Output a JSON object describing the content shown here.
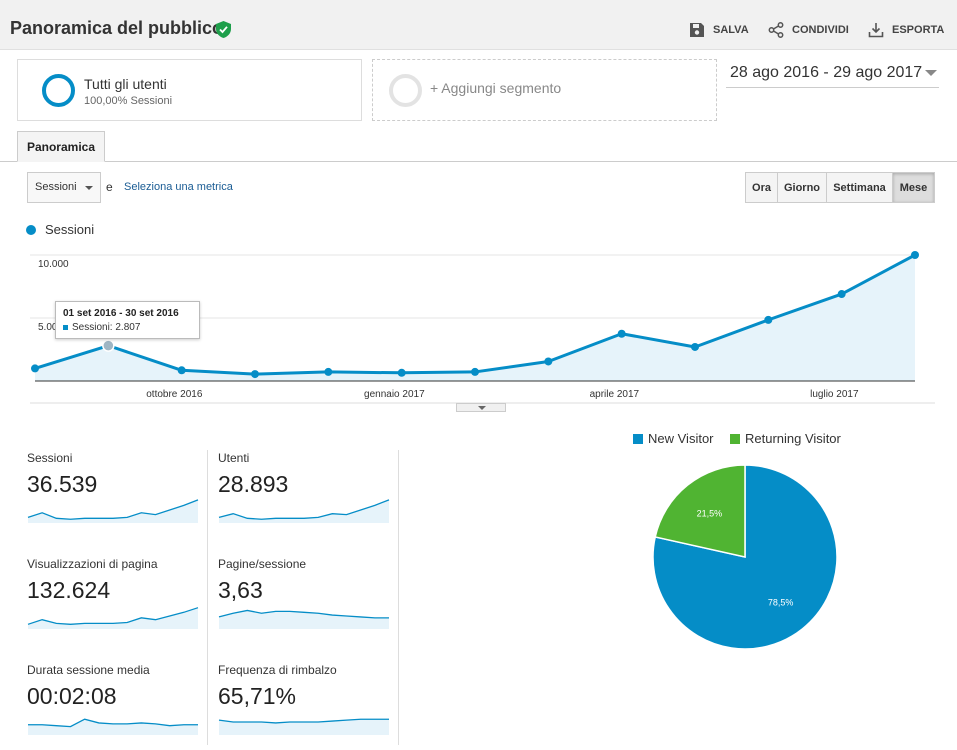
{
  "header": {
    "title": "Panoramica del pubblico",
    "actions": [
      {
        "label": "SALVA",
        "icon": "save-icon"
      },
      {
        "label": "CONDIVIDI",
        "icon": "share-icon"
      },
      {
        "label": "ESPORTA",
        "icon": "export-icon"
      }
    ]
  },
  "segments": {
    "active": {
      "name": "Tutti gli utenti",
      "sub": "100,00% Sessioni"
    },
    "add_label": "+ Aggiungi segmento"
  },
  "date_range": "28 ago 2016 - 29 ago 2017",
  "tabs": [
    "Panoramica"
  ],
  "controls": {
    "metric": "Sessioni",
    "and_text": "e",
    "select_metric": "Seleziona una metrica",
    "periods": [
      "Ora",
      "Giorno",
      "Settimana",
      "Mese"
    ],
    "active_period": "Mese"
  },
  "tooltip": {
    "title": "01 set 2016 - 30 set 2016",
    "line": "Sessioni: 2.807"
  },
  "chart_data": [
    {
      "type": "area",
      "series": [
        {
          "name": "Sessioni",
          "values": [
            1000,
            2807,
            850,
            550,
            720,
            650,
            720,
            1550,
            3750,
            2700,
            4850,
            6900,
            10000
          ]
        }
      ],
      "ylim": [
        0,
        10000
      ],
      "yticks": [
        "10.000",
        "5.000"
      ],
      "xtick_labels": [
        "ottobre 2016",
        "gennaio 2017",
        "aprile 2017",
        "luglio 2017"
      ],
      "xtick_indices": [
        1.9,
        4.9,
        7.9,
        10.9
      ],
      "grid": true,
      "color": "#058dc7",
      "fill_color": "#e6f3fa",
      "highlight_index": 1
    },
    {
      "type": "pie",
      "title": "",
      "slices": [
        {
          "label": "New Visitor",
          "value": 78.5,
          "text": "78,5%",
          "color": "#058dc7"
        },
        {
          "label": "Returning Visitor",
          "value": 21.5,
          "text": "21,5%",
          "color": "#50b432"
        }
      ],
      "legend": "top"
    }
  ],
  "scorecards": [
    {
      "label": "Sessioni",
      "value": "36.539",
      "spark": [
        5,
        10,
        4,
        3,
        4,
        4,
        4,
        5,
        10,
        8,
        13,
        18,
        24
      ]
    },
    {
      "label": "Utenti",
      "value": "28.893",
      "spark": [
        5,
        9,
        4,
        3,
        4,
        4,
        4,
        5,
        9,
        8,
        13,
        18,
        24
      ]
    },
    {
      "label": "Visualizzazioni di pagina",
      "value": "132.624",
      "spark": [
        4,
        9,
        5,
        4,
        5,
        5,
        5,
        6,
        11,
        9,
        13,
        17,
        22
      ]
    },
    {
      "label": "Pagine/sessione",
      "value": "3,63",
      "spark": [
        12,
        16,
        19,
        16,
        18,
        18,
        17,
        16,
        14,
        13,
        12,
        11,
        11
      ]
    },
    {
      "label": "Durata sessione media",
      "value": "00:02:08",
      "spark": [
        10,
        10,
        9,
        8,
        16,
        12,
        11,
        11,
        12,
        11,
        9,
        10,
        10
      ]
    },
    {
      "label": "Frequenza di rimbalzo",
      "value": "65,71%",
      "spark": [
        15,
        13,
        13,
        13,
        12,
        13,
        13,
        13,
        14,
        15,
        16,
        16,
        16
      ]
    }
  ],
  "colors": {
    "accent": "#058dc7",
    "returning": "#50b432",
    "link": "#1a5c94"
  }
}
